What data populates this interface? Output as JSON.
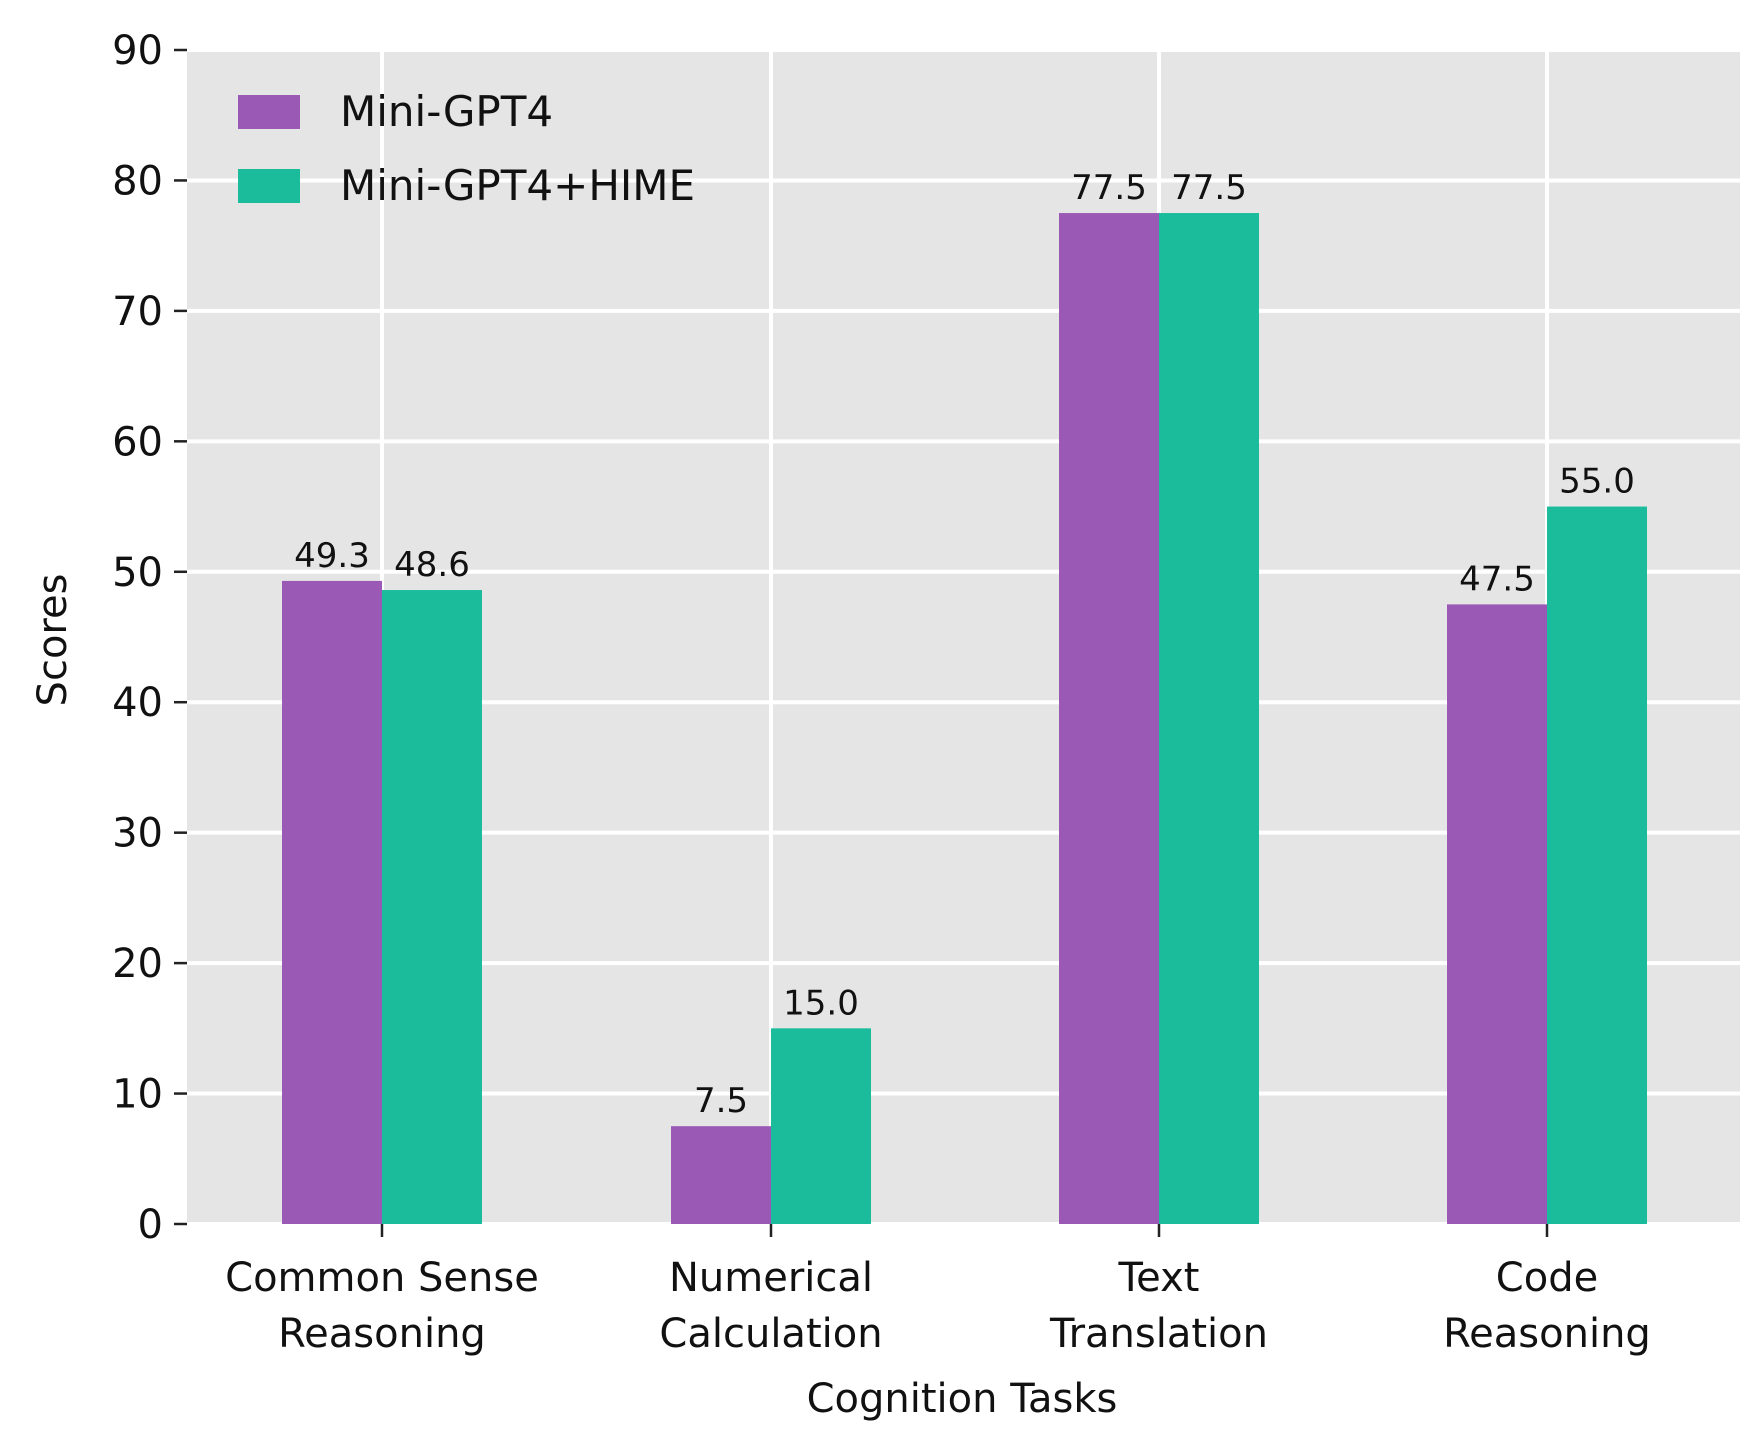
{
  "chart_data": {
    "type": "bar",
    "title": "",
    "xlabel": "Cognition Tasks",
    "ylabel": "Scores",
    "ylim": [
      0,
      90
    ],
    "yticks": [
      0,
      10,
      20,
      30,
      40,
      50,
      60,
      70,
      80,
      90
    ],
    "grid": true,
    "legend_position": "top-left",
    "categories": [
      [
        "Common Sense",
        "Reasoning"
      ],
      [
        "Numerical",
        "Calculation"
      ],
      [
        "Text",
        "Translation"
      ],
      [
        "Code",
        "Reasoning"
      ]
    ],
    "series": [
      {
        "name": "Mini-GPT4",
        "color": "#9b59b6",
        "values": [
          49.3,
          7.5,
          77.5,
          47.5
        ],
        "labels": [
          "49.3",
          "7.5",
          "77.5",
          "47.5"
        ]
      },
      {
        "name": "Mini-GPT4+HIME",
        "color": "#1abc9c",
        "values": [
          48.6,
          15.0,
          77.5,
          55.0
        ],
        "labels": [
          "48.6",
          "15.0",
          "77.5",
          "55.0"
        ]
      }
    ],
    "plot_background": "#e5e5e5",
    "grid_color": "#ffffff"
  }
}
